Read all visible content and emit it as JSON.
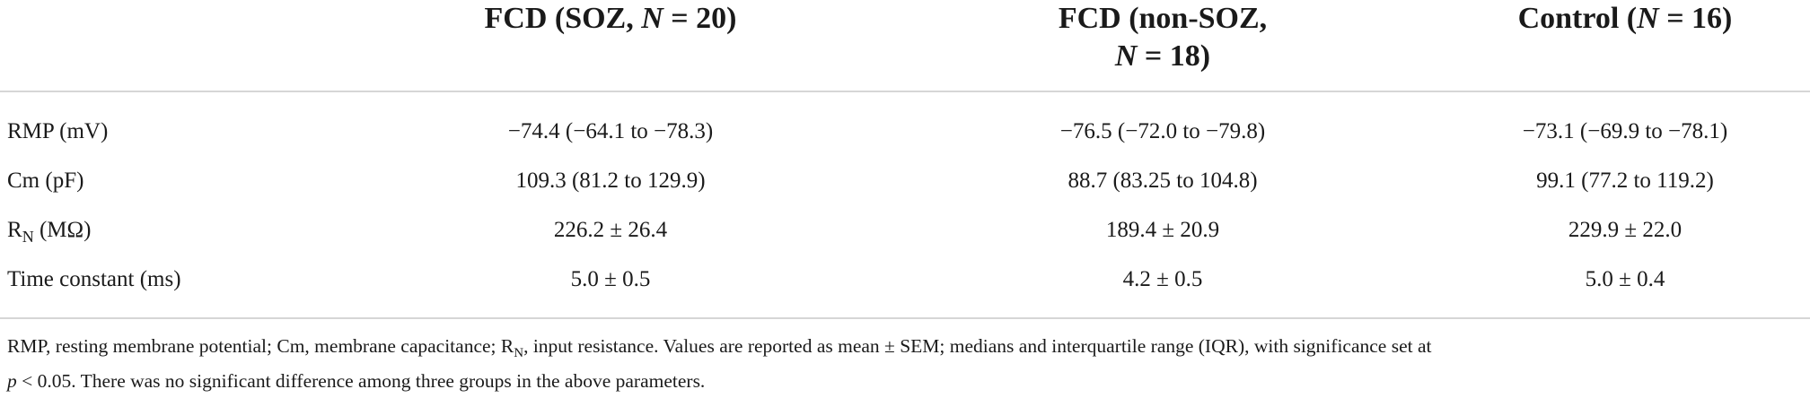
{
  "table": {
    "headers": {
      "soz_prefix": "FCD (SOZ, ",
      "soz_n_var": "N",
      "soz_n_value": " = 20)",
      "nonsoz_line1": "FCD (non-SOZ,",
      "nonsoz_n_var": "N",
      "nonsoz_n_value": " = 18)",
      "control_prefix": "Control (",
      "control_n_var": "N",
      "control_n_value": " = 16)"
    },
    "rows": [
      {
        "label": "RMP (mV)",
        "soz": "−74.4 (−64.1 to −78.3)",
        "nonsoz": "−76.5 (−72.0 to −79.8)",
        "control": "−73.1 (−69.9 to −78.1)"
      },
      {
        "label": "Cm (pF)",
        "soz": "109.3 (81.2 to 129.9)",
        "nonsoz": "88.7 (83.25 to 104.8)",
        "control": "99.1 (77.2 to 119.2)"
      },
      {
        "label_main": "R",
        "label_sub": "N",
        "label_unit": " (MΩ)",
        "soz": "226.2 ± 26.4",
        "nonsoz": "189.4 ± 20.9",
        "control": "229.9 ± 22.0"
      },
      {
        "label": "Time constant (ms)",
        "soz": "5.0 ± 0.5",
        "nonsoz": "4.2 ± 0.5",
        "control": "5.0 ± 0.4"
      }
    ]
  },
  "footnote": {
    "part1": "RMP, resting membrane potential; Cm, membrane capacitance; R",
    "sub": "N",
    "part2": ", input resistance. Values are reported as mean ± SEM; medians and interquartile range (IQR), with significance set at",
    "p_var": "p",
    "part3": " < 0.05. There was no significant difference among three groups in the above parameters."
  }
}
